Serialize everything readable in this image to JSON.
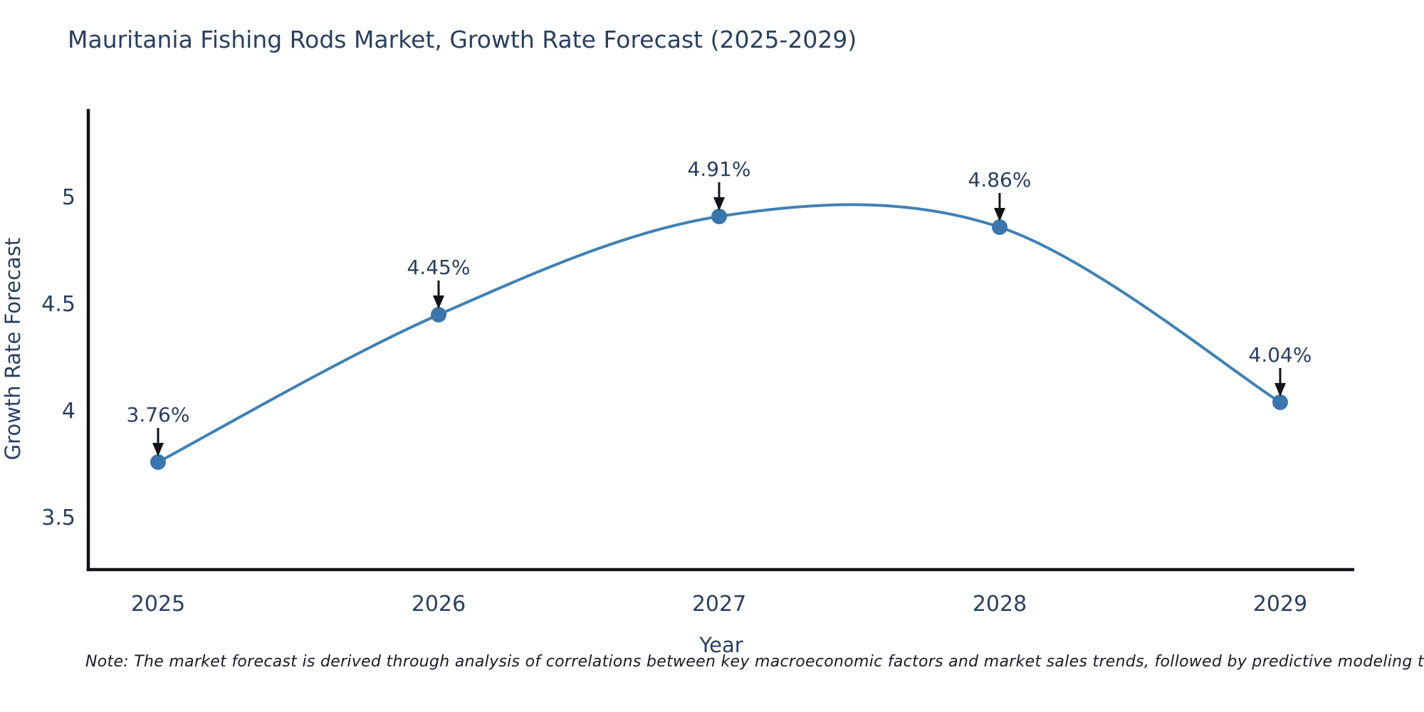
{
  "title": "Mauritania Fishing Rods Market, Growth Rate Forecast (2025-2029)",
  "note": "Note: The market forecast is derived through analysis of correlations between key macroeconomic factors and market sales trends, followed by predictive modeling to project future sales",
  "chart_data": {
    "type": "line",
    "title": "Mauritania Fishing Rods Market, Growth Rate Forecast (2025-2029)",
    "x": [
      2025,
      2026,
      2027,
      2028,
      2029
    ],
    "series": [
      {
        "name": "Growth Rate Forecast",
        "values": [
          3.76,
          4.45,
          4.91,
          4.86,
          4.04
        ]
      }
    ],
    "point_labels": [
      "3.76%",
      "4.45%",
      "4.91%",
      "4.86%",
      "4.04%"
    ],
    "xlabel": "Year",
    "ylabel": "Growth Rate Forecast",
    "x_tick_labels": [
      "2025",
      "2026",
      "2027",
      "2028",
      "2029"
    ],
    "y_tick_values": [
      3.5,
      4,
      4.5,
      5
    ],
    "y_tick_labels": [
      "3.5",
      "4",
      "4.5",
      "5"
    ],
    "xlim": [
      2024.75,
      2029.26
    ],
    "ylim": [
      3.26,
      5.41
    ],
    "grid": false,
    "legend_position": "none",
    "line_shape": "spline",
    "annotations_have_arrows": true,
    "colors": {
      "line": "#4081b5",
      "marker": "#3a76ad",
      "axis": "#111318",
      "arrow": "#111318",
      "chart_text": "#2a3f5f",
      "note_text": "#1a1a24",
      "background": "#ffffff"
    }
  }
}
